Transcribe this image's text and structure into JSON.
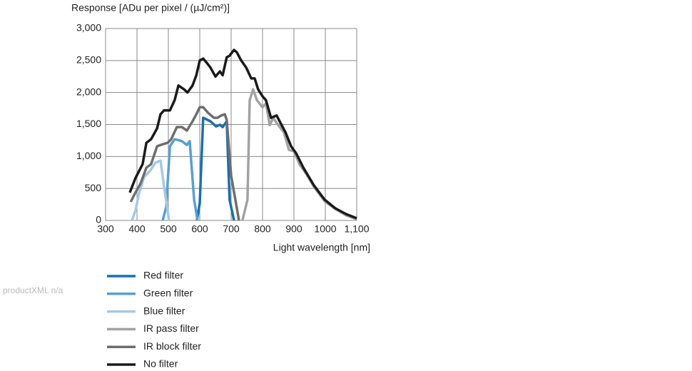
{
  "chart_data": {
    "type": "line",
    "title": "Response [ADu per pixel / (µJ/cm²)]",
    "x_label": "Light wavelength [nm]",
    "xlim": [
      300,
      1100
    ],
    "xticks": [
      300,
      400,
      500,
      600,
      700,
      800,
      900,
      1000,
      {
        "value": 1100,
        "label": "1,100"
      }
    ],
    "ylim": [
      0,
      3000
    ],
    "yticks": [
      0,
      500,
      {
        "value": 1000,
        "label": "1,000"
      },
      {
        "value": 1500,
        "label": "1,500"
      },
      {
        "value": 2000,
        "label": "2,000"
      },
      {
        "value": 2500,
        "label": "2,500"
      },
      {
        "value": 3000,
        "label": "3,000"
      }
    ],
    "grid": true,
    "series": [
      {
        "name": "Red filter",
        "color": "#1b6fae",
        "x": [
          591,
          600,
          611,
          634,
          652,
          664,
          673,
          686,
          695,
          709
        ],
        "values": [
          0,
          270,
          1605,
          1550,
          1470,
          1495,
          1460,
          1550,
          325,
          0
        ]
      },
      {
        "name": "Green filter",
        "color": "#5a9fd2",
        "x": [
          482,
          493,
          505,
          520,
          543,
          559,
          568,
          582,
          593
        ],
        "values": [
          0,
          210,
          1160,
          1270,
          1240,
          1180,
          1240,
          325,
          0
        ]
      },
      {
        "name": "Blue filter",
        "color": "#a3c9e6",
        "x": [
          384,
          395,
          407,
          423,
          441,
          459,
          475,
          486,
          502
        ],
        "values": [
          0,
          155,
          435,
          680,
          770,
          905,
          935,
          545,
          0
        ]
      },
      {
        "name": "IR pass filter",
        "color": "#a2a2a2",
        "x": [
          736,
          752,
          759,
          770,
          782,
          800,
          811,
          823,
          834,
          850,
          868,
          884,
          900,
          918,
          941,
          964,
          998,
          1032,
          1066,
          1100
        ],
        "values": [
          0,
          325,
          1880,
          2050,
          1880,
          1770,
          1830,
          1490,
          1605,
          1490,
          1380,
          1105,
          1080,
          880,
          715,
          525,
          300,
          180,
          80,
          20
        ]
      },
      {
        "name": "IR block filter",
        "color": "#6e6e6e",
        "x": [
          380,
          395,
          411,
          430,
          445,
          464,
          475,
          498,
          509,
          527,
          543,
          559,
          577,
          589,
          600,
          611,
          627,
          645,
          657,
          668,
          680,
          686,
          700,
          725
        ],
        "values": [
          290,
          435,
          570,
          825,
          880,
          1160,
          1180,
          1215,
          1270,
          1460,
          1460,
          1405,
          1550,
          1660,
          1770,
          1770,
          1680,
          1605,
          1605,
          1640,
          1660,
          1570,
          700,
          0
        ]
      },
      {
        "name": "No filter",
        "color": "#1a1a1a",
        "x": [
          377,
          395,
          418,
          430,
          445,
          464,
          475,
          486,
          505,
          520,
          532,
          550,
          561,
          577,
          589,
          600,
          611,
          623,
          634,
          650,
          664,
          673,
          686,
          695,
          709,
          718,
          732,
          748,
          764,
          775,
          786,
          800,
          811,
          827,
          845,
          861,
          873,
          891,
          907,
          930,
          964,
          998,
          1032,
          1066,
          1100
        ],
        "values": [
          435,
          660,
          880,
          1215,
          1270,
          1440,
          1660,
          1720,
          1720,
          1880,
          2110,
          2050,
          2000,
          2110,
          2270,
          2500,
          2530,
          2460,
          2390,
          2250,
          2330,
          2270,
          2550,
          2575,
          2665,
          2630,
          2500,
          2390,
          2220,
          2220,
          2050,
          1940,
          1880,
          1605,
          1640,
          1490,
          1380,
          1160,
          1050,
          825,
          545,
          325,
          190,
          100,
          35
        ]
      }
    ]
  },
  "watermark": "productXML n/a"
}
